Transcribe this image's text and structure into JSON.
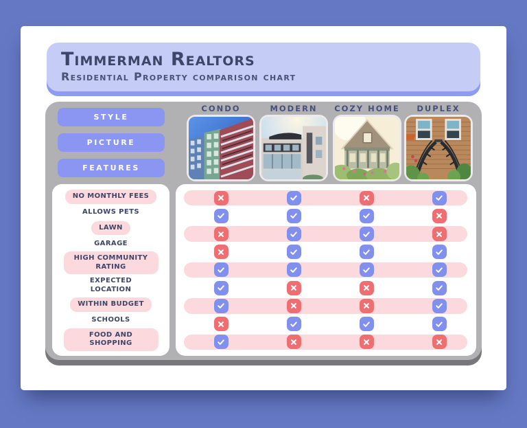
{
  "header": {
    "title": "Timmerman Realtors",
    "subtitle": "Residential Property comparison chart"
  },
  "sidebar": {
    "buttons": [
      {
        "label": "STYLE"
      },
      {
        "label": "PICTURE"
      },
      {
        "label": "FEATURES"
      }
    ]
  },
  "chart_data": {
    "type": "table",
    "title": "Timmerman Realtors",
    "subtitle": "Residential Property comparison chart",
    "columns": [
      "CONDO",
      "MODERN",
      "COZY HOME",
      "DUPLEX"
    ],
    "column_photos": [
      "condo-photo",
      "modern-photo",
      "cozy-home-photo",
      "duplex-photo"
    ],
    "rows": [
      {
        "label": "NO MONTHLY FEES",
        "values": [
          "no",
          "yes",
          "no",
          "yes"
        ]
      },
      {
        "label": "ALLOWS PETS",
        "values": [
          "yes",
          "yes",
          "yes",
          "no"
        ]
      },
      {
        "label": "LAWN",
        "values": [
          "no",
          "yes",
          "yes",
          "no"
        ]
      },
      {
        "label": "GARAGE",
        "values": [
          "no",
          "yes",
          "yes",
          "yes"
        ]
      },
      {
        "label": "HIGH COMMUNITY RATING",
        "values": [
          "yes",
          "yes",
          "yes",
          "yes"
        ]
      },
      {
        "label": "EXPECTED LOCATION",
        "values": [
          "yes",
          "no",
          "no",
          "yes"
        ]
      },
      {
        "label": "WITHIN BUDGET",
        "values": [
          "yes",
          "no",
          "no",
          "yes"
        ]
      },
      {
        "label": "SCHOOLS",
        "values": [
          "no",
          "yes",
          "yes",
          "yes"
        ]
      },
      {
        "label": "FOOD AND SHOPPING",
        "values": [
          "yes",
          "no",
          "no",
          "no"
        ]
      }
    ],
    "value_legend": {
      "yes": "check-icon",
      "no": "cross-icon"
    }
  },
  "colors": {
    "background": "#6478c4",
    "accent": "#8b96f3",
    "banner": "#c5cdf7",
    "banner_shadow": "#8d9cf0",
    "board": "#b1b1b3",
    "board_shadow": "#78787b",
    "pink_band": "#fbd9dc",
    "check_blue": "#8190ed",
    "cross_red": "#ee6e72",
    "text_dark": "#3e4569"
  }
}
